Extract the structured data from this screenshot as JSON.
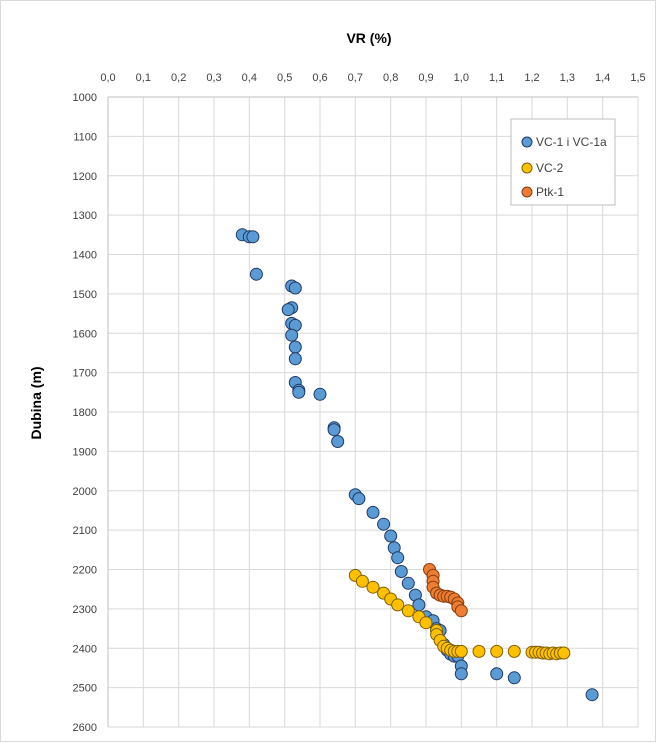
{
  "chart_data": {
    "type": "scatter",
    "title": "VR (%)",
    "xlabel": "VR (%)",
    "ylabel": "Dubina (m)",
    "xlim": [
      0.0,
      1.5
    ],
    "ylim": [
      1000,
      2600
    ],
    "y_inverted": true,
    "x_axis_position": "top",
    "x_ticks": [
      "0,0",
      "0,1",
      "0,2",
      "0,3",
      "0,4",
      "0,5",
      "0,6",
      "0,7",
      "0,8",
      "0,9",
      "1,0",
      "1,1",
      "1,2",
      "1,3",
      "1,4",
      "1,5"
    ],
    "y_ticks": [
      "1000",
      "1100",
      "1200",
      "1300",
      "1400",
      "1500",
      "1600",
      "1700",
      "1800",
      "1900",
      "2000",
      "2100",
      "2200",
      "2300",
      "2400",
      "2500",
      "2600"
    ],
    "grid": true,
    "legend_position": "top-right",
    "series": [
      {
        "name": "VC-1 i VC-1a",
        "color": "#5b9bd5",
        "points": [
          [
            0.38,
            1350
          ],
          [
            0.4,
            1355
          ],
          [
            0.41,
            1355
          ],
          [
            0.42,
            1450
          ],
          [
            0.52,
            1480
          ],
          [
            0.53,
            1485
          ],
          [
            0.52,
            1535
          ],
          [
            0.51,
            1540
          ],
          [
            0.52,
            1575
          ],
          [
            0.53,
            1580
          ],
          [
            0.52,
            1605
          ],
          [
            0.53,
            1635
          ],
          [
            0.53,
            1665
          ],
          [
            0.53,
            1725
          ],
          [
            0.54,
            1745
          ],
          [
            0.54,
            1750
          ],
          [
            0.6,
            1755
          ],
          [
            0.64,
            1840
          ],
          [
            0.64,
            1845
          ],
          [
            0.65,
            1875
          ],
          [
            0.7,
            2010
          ],
          [
            0.71,
            2020
          ],
          [
            0.75,
            2055
          ],
          [
            0.78,
            2085
          ],
          [
            0.8,
            2115
          ],
          [
            0.81,
            2145
          ],
          [
            0.82,
            2170
          ],
          [
            0.83,
            2205
          ],
          [
            0.85,
            2235
          ],
          [
            0.87,
            2265
          ],
          [
            0.88,
            2290
          ],
          [
            0.9,
            2320
          ],
          [
            0.92,
            2330
          ],
          [
            0.93,
            2350
          ],
          [
            0.94,
            2355
          ],
          [
            0.95,
            2390
          ],
          [
            0.96,
            2405
          ],
          [
            0.97,
            2415
          ],
          [
            0.98,
            2420
          ],
          [
            0.99,
            2420
          ],
          [
            1.0,
            2445
          ],
          [
            1.0,
            2465
          ],
          [
            1.1,
            2465
          ],
          [
            1.15,
            2475
          ],
          [
            1.37,
            2518
          ]
        ]
      },
      {
        "name": "VC-2",
        "color": "#ffc000",
        "points": [
          [
            0.7,
            2215
          ],
          [
            0.72,
            2230
          ],
          [
            0.75,
            2245
          ],
          [
            0.78,
            2260
          ],
          [
            0.8,
            2275
          ],
          [
            0.82,
            2290
          ],
          [
            0.85,
            2305
          ],
          [
            0.88,
            2320
          ],
          [
            0.9,
            2335
          ],
          [
            0.93,
            2355
          ],
          [
            0.93,
            2365
          ],
          [
            0.94,
            2380
          ],
          [
            0.95,
            2395
          ],
          [
            0.96,
            2400
          ],
          [
            0.97,
            2405
          ],
          [
            0.98,
            2408
          ],
          [
            0.99,
            2408
          ],
          [
            1.0,
            2408
          ],
          [
            1.05,
            2408
          ],
          [
            1.1,
            2408
          ],
          [
            1.15,
            2408
          ],
          [
            1.2,
            2410
          ],
          [
            1.21,
            2410
          ],
          [
            1.22,
            2410
          ],
          [
            1.23,
            2412
          ],
          [
            1.24,
            2412
          ],
          [
            1.25,
            2414
          ],
          [
            1.26,
            2412
          ],
          [
            1.27,
            2414
          ],
          [
            1.28,
            2412
          ],
          [
            1.29,
            2412
          ]
        ]
      },
      {
        "name": "Ptk-1",
        "color": "#ed7d31",
        "points": [
          [
            0.91,
            2200
          ],
          [
            0.92,
            2215
          ],
          [
            0.92,
            2230
          ],
          [
            0.92,
            2245
          ],
          [
            0.93,
            2260
          ],
          [
            0.94,
            2265
          ],
          [
            0.95,
            2268
          ],
          [
            0.96,
            2268
          ],
          [
            0.97,
            2270
          ],
          [
            0.98,
            2275
          ],
          [
            0.99,
            2285
          ],
          [
            0.99,
            2295
          ],
          [
            1.0,
            2305
          ]
        ]
      }
    ]
  }
}
